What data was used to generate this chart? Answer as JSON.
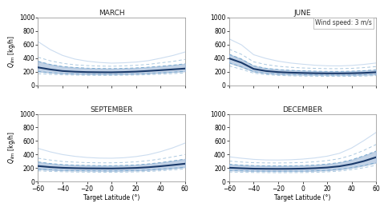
{
  "titles": [
    "MARCH",
    "JUNE",
    "SEPTEMBER",
    "DECEMBER"
  ],
  "xlabel": "Target Latitude (°)",
  "ylim": [
    0,
    1000
  ],
  "xlim": [
    -60,
    60
  ],
  "yticks": [
    0,
    200,
    400,
    600,
    800,
    1000
  ],
  "xticks": [
    -60,
    -40,
    -20,
    0,
    20,
    40,
    60
  ],
  "annotation": "Wind speed: 3 m/s",
  "latitudes": [
    -60,
    -50,
    -40,
    -30,
    -20,
    -10,
    0,
    10,
    20,
    30,
    40,
    50,
    60
  ],
  "colors": {
    "median": "#1a3a6b",
    "fill_inner": "#a8c0dc",
    "fill_inner_alpha": 0.7,
    "dashed_inner": "#7aaad0",
    "dashed_outer": "#aac8e0",
    "outer_line": "#ccddf0"
  },
  "march": {
    "median": [
      265,
      235,
      212,
      202,
      196,
      194,
      193,
      197,
      203,
      213,
      224,
      236,
      248
    ],
    "fill_lo": [
      205,
      188,
      177,
      170,
      166,
      164,
      163,
      166,
      170,
      177,
      186,
      196,
      208
    ],
    "fill_hi": [
      355,
      308,
      278,
      263,
      254,
      249,
      247,
      251,
      257,
      268,
      282,
      298,
      318
    ],
    "dashed_lo": [
      172,
      163,
      156,
      152,
      149,
      148,
      148,
      150,
      153,
      158,
      165,
      173,
      184
    ],
    "dashed_hi": [
      415,
      362,
      326,
      303,
      292,
      285,
      282,
      287,
      296,
      310,
      332,
      353,
      383
    ],
    "outer_hi": [
      645,
      528,
      442,
      388,
      357,
      338,
      328,
      333,
      344,
      364,
      400,
      440,
      492
    ]
  },
  "june": {
    "median": [
      398,
      335,
      243,
      212,
      196,
      188,
      183,
      179,
      177,
      177,
      179,
      184,
      194
    ],
    "fill_lo": [
      333,
      273,
      203,
      179,
      166,
      160,
      156,
      154,
      152,
      151,
      152,
      156,
      162
    ],
    "fill_hi": [
      458,
      388,
      288,
      252,
      233,
      222,
      215,
      209,
      206,
      206,
      209,
      217,
      229
    ],
    "dashed_lo": [
      287,
      238,
      180,
      159,
      147,
      141,
      137,
      135,
      133,
      132,
      133,
      137,
      144
    ],
    "dashed_hi": [
      533,
      458,
      347,
      307,
      281,
      267,
      257,
      251,
      247,
      247,
      251,
      262,
      277
    ],
    "outer_hi": [
      685,
      598,
      452,
      397,
      357,
      330,
      312,
      297,
      289,
      287,
      294,
      309,
      330
    ]
  },
  "september": {
    "median": [
      232,
      216,
      206,
      201,
      198,
      197,
      196,
      199,
      204,
      214,
      229,
      247,
      266
    ],
    "fill_lo": [
      186,
      176,
      169,
      165,
      163,
      162,
      161,
      163,
      167,
      174,
      185,
      199,
      214
    ],
    "fill_hi": [
      292,
      269,
      253,
      246,
      240,
      238,
      237,
      241,
      249,
      263,
      283,
      307,
      334
    ],
    "dashed_lo": [
      161,
      153,
      148,
      144,
      142,
      141,
      140,
      142,
      146,
      152,
      162,
      175,
      189
    ],
    "dashed_hi": [
      347,
      320,
      299,
      289,
      282,
      279,
      279,
      284,
      294,
      311,
      336,
      367,
      401
    ],
    "outer_hi": [
      492,
      441,
      401,
      375,
      358,
      349,
      347,
      354,
      371,
      399,
      444,
      500,
      570
    ]
  },
  "december": {
    "median": [
      207,
      199,
      193,
      191,
      190,
      191,
      194,
      200,
      210,
      228,
      260,
      305,
      362
    ],
    "fill_lo": [
      169,
      163,
      159,
      157,
      156,
      157,
      158,
      162,
      169,
      183,
      207,
      240,
      282
    ],
    "fill_hi": [
      257,
      246,
      238,
      235,
      234,
      235,
      239,
      247,
      261,
      283,
      324,
      384,
      453
    ],
    "dashed_lo": [
      145,
      140,
      137,
      135,
      134,
      135,
      136,
      139,
      146,
      158,
      178,
      207,
      243
    ],
    "dashed_hi": [
      305,
      291,
      281,
      278,
      277,
      279,
      284,
      294,
      312,
      340,
      391,
      463,
      550
    ],
    "outer_hi": [
      368,
      347,
      330,
      321,
      320,
      324,
      334,
      351,
      377,
      419,
      498,
      608,
      728
    ]
  }
}
